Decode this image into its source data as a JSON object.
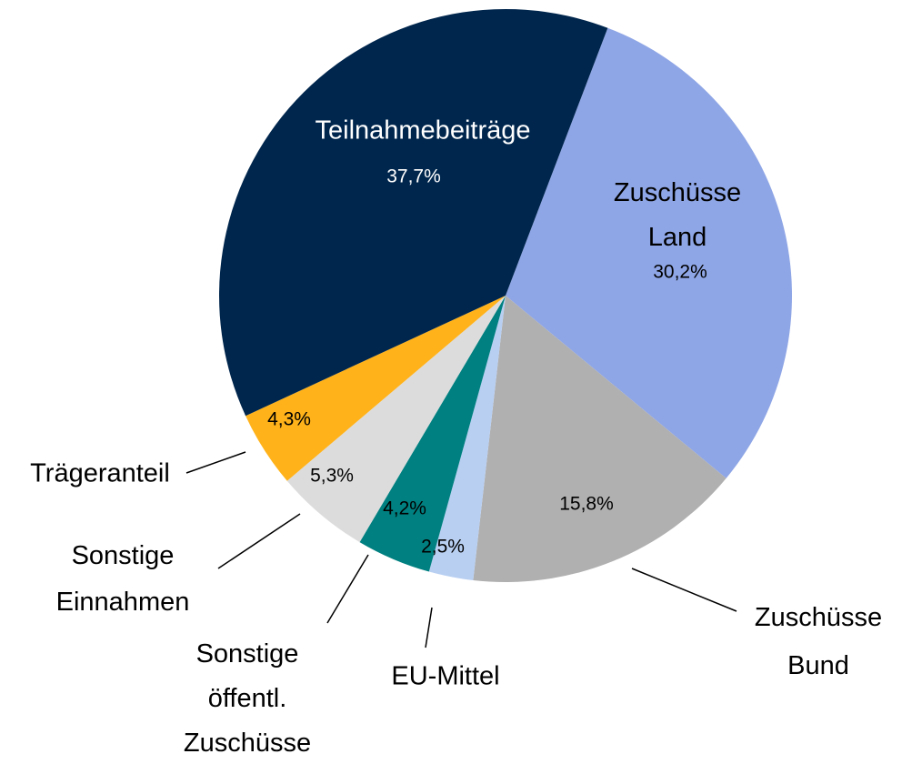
{
  "chart_data": {
    "type": "pie",
    "categories": [
      "Zuschüsse Land",
      "Zuschüsse Bund",
      "EU-Mittel",
      "Sonstige öffentl. Zuschüsse",
      "Sonstige Einnahmen",
      "Trägeranteil",
      "Teilnahmebeiträge"
    ],
    "values": [
      30.2,
      15.8,
      2.5,
      4.2,
      5.3,
      4.3,
      37.7
    ],
    "value_labels": [
      "30,2%",
      "15,8%",
      "2,5%",
      "4,2%",
      "5,3%",
      "4,3%",
      "37,7%"
    ],
    "colors": [
      "#8fa6e6",
      "#b0b0b0",
      "#b8cff2",
      "#008080",
      "#dcdcdc",
      "#ffb21a",
      "#00264d"
    ]
  }
}
